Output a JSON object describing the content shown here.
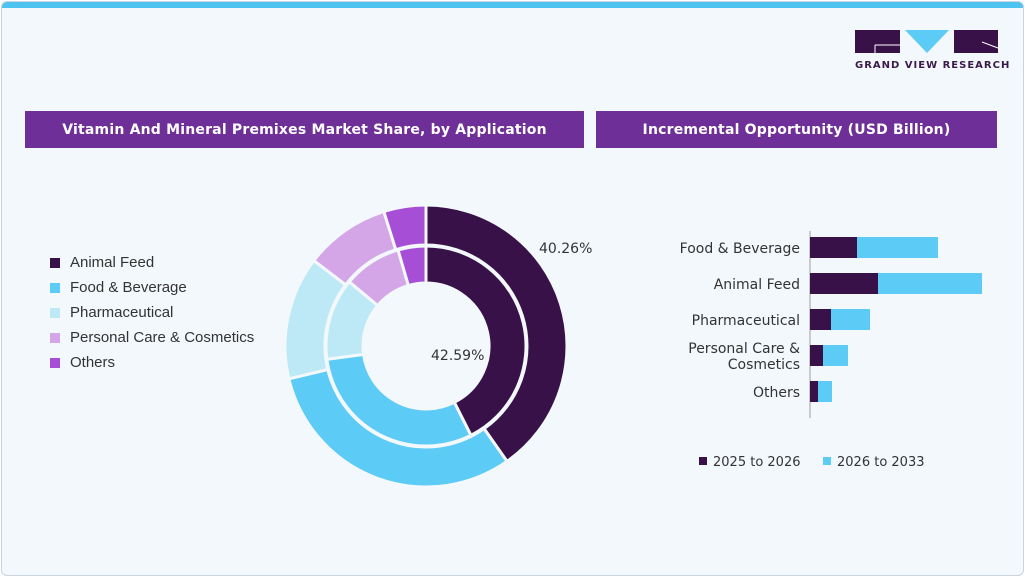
{
  "brand": {
    "name": "GRAND VIEW RESEARCH"
  },
  "left_panel": {
    "title": "Vitamin And Mineral Premixes Market Share, by Application"
  },
  "right_panel": {
    "title": "Incremental Opportunity (USD Billion)"
  },
  "chart_data": [
    {
      "type": "pie",
      "subtype": "nested-donut",
      "categories": [
        "Animal Feed",
        "Food & Beverage",
        "Pharmaceutical",
        "Personal Care & Cosmetics",
        "Others"
      ],
      "colors": [
        "#371148",
        "#5ccbf5",
        "#bde9f7",
        "#d4a6e8",
        "#a64fd6"
      ],
      "series": [
        {
          "ring": "outer",
          "values": [
            40.26,
            31.0,
            14.1,
            9.8,
            4.84
          ],
          "label": "40.26%"
        },
        {
          "ring": "inner",
          "values": [
            42.59,
            30.3,
            13.2,
            9.4,
            4.51
          ],
          "label": "42.59%"
        }
      ],
      "legend": "left"
    },
    {
      "type": "bar",
      "orientation": "horizontal",
      "stacked": true,
      "categories": [
        "Food & Beverage",
        "Animal Feed",
        "Pharmaceutical",
        "Personal Care & Cosmetics",
        "Others"
      ],
      "series": [
        {
          "name": "2025 to 2026",
          "color": "#371148",
          "values": [
            47,
            68,
            21,
            13,
            8
          ]
        },
        {
          "name": "2026 to 2033",
          "color": "#5ccbf5",
          "values": [
            81,
            104,
            39,
            25,
            14
          ]
        }
      ],
      "xlim": [
        0,
        172
      ],
      "legend": "bottom",
      "grid": false
    }
  ]
}
